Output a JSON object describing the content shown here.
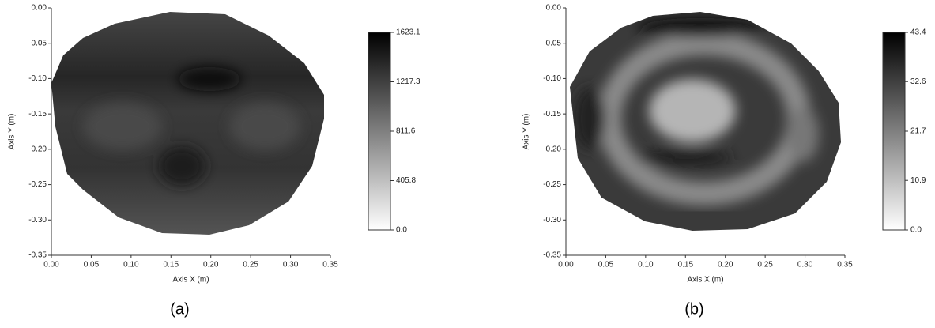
{
  "chart_data": [
    {
      "type": "heatmap",
      "xlabel": "Axis X (m)",
      "ylabel": "Axis Y (m)",
      "caption": "(a)",
      "xlim": [
        0,
        0.35
      ],
      "ylim": [
        -0.35,
        0
      ],
      "xticks": [
        {
          "value": 0,
          "label": "0.00"
        },
        {
          "value": 0.05,
          "label": "0.05"
        },
        {
          "value": 0.1,
          "label": "0.10"
        },
        {
          "value": 0.15,
          "label": "0.15"
        },
        {
          "value": 0.2,
          "label": "0.20"
        },
        {
          "value": 0.25,
          "label": "0.25"
        },
        {
          "value": 0.3,
          "label": "0.30"
        },
        {
          "value": 0.35,
          "label": "0.35"
        }
      ],
      "yticks": [
        {
          "value": 0,
          "label": "0.00"
        },
        {
          "value": -0.05,
          "label": "-0.05"
        },
        {
          "value": -0.1,
          "label": "-0.10"
        },
        {
          "value": -0.15,
          "label": "-0.15"
        },
        {
          "value": -0.2,
          "label": "-0.20"
        },
        {
          "value": -0.25,
          "label": "-0.25"
        },
        {
          "value": -0.3,
          "label": "-0.30"
        },
        {
          "value": -0.35,
          "label": "-0.35"
        }
      ],
      "colorbar_lim": [
        0,
        1623.1
      ],
      "colorbar_ticks": [
        {
          "value": 0,
          "label": "0.0"
        },
        405.8,
        811.6,
        1217.3,
        1623.1
      ]
    },
    {
      "type": "heatmap",
      "xlabel": "Axis X (m)",
      "ylabel": "Axis Y (m)",
      "caption": "(b)",
      "xlim": [
        0,
        0.35
      ],
      "ylim": [
        -0.35,
        0
      ],
      "xticks": [
        {
          "value": 0,
          "label": "0.00"
        },
        {
          "value": 0.05,
          "label": "0.05"
        },
        {
          "value": 0.1,
          "label": "0.10"
        },
        {
          "value": 0.15,
          "label": "0.15"
        },
        {
          "value": 0.2,
          "label": "0.20"
        },
        {
          "value": 0.25,
          "label": "0.25"
        },
        {
          "value": 0.3,
          "label": "0.30"
        },
        {
          "value": 0.35,
          "label": "0.35"
        }
      ],
      "yticks": [
        {
          "value": 0,
          "label": "0.00"
        },
        {
          "value": -0.05,
          "label": "-0.05"
        },
        {
          "value": -0.1,
          "label": "-0.10"
        },
        {
          "value": -0.15,
          "label": "-0.15"
        },
        {
          "value": -0.2,
          "label": "-0.20"
        },
        {
          "value": -0.25,
          "label": "-0.25"
        },
        {
          "value": -0.3,
          "label": "-0.30"
        },
        {
          "value": -0.35,
          "label": "-0.35"
        }
      ],
      "colorbar_lim": [
        0,
        43.4
      ],
      "colorbar_ticks": [
        {
          "value": 0,
          "label": "0.0"
        },
        10.9,
        21.7,
        32.6,
        43.4
      ]
    }
  ]
}
